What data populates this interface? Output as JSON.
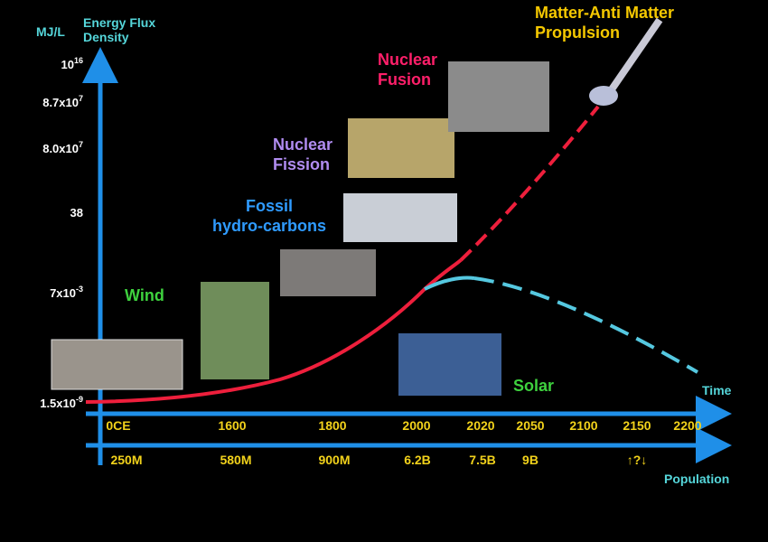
{
  "y_axis": {
    "unit": "MJ/L",
    "title": [
      "Energy Flux",
      "Density"
    ],
    "labels": [
      {
        "base": "10",
        "exp": "16"
      },
      {
        "base": "8.7x10",
        "exp": "7"
      },
      {
        "base": "8.0x10",
        "exp": "7"
      },
      {
        "base": "38",
        "exp": null
      },
      {
        "base": "7x10",
        "exp": "-3"
      },
      {
        "base": "1.5x10",
        "exp": "-9"
      }
    ]
  },
  "time_axis": {
    "title": "Time",
    "labels": [
      "0CE",
      "1600",
      "1800",
      "2000",
      "2020",
      "2050",
      "2100",
      "2150",
      "2200"
    ]
  },
  "population_axis": {
    "title": "Population",
    "labels": [
      "250M",
      "580M",
      "900M",
      "6.2B",
      "7.5B",
      "9B",
      "↑?↓"
    ]
  },
  "sources": {
    "antimatter": [
      "Matter-Anti Matter",
      "Propulsion"
    ],
    "fusion": [
      "Nuclear",
      "Fusion"
    ],
    "fission": [
      "Nuclear",
      "Fission"
    ],
    "fossil": [
      "Fossil",
      "hydro-carbons"
    ],
    "wind": "Wind",
    "solar": "Solar"
  }
}
